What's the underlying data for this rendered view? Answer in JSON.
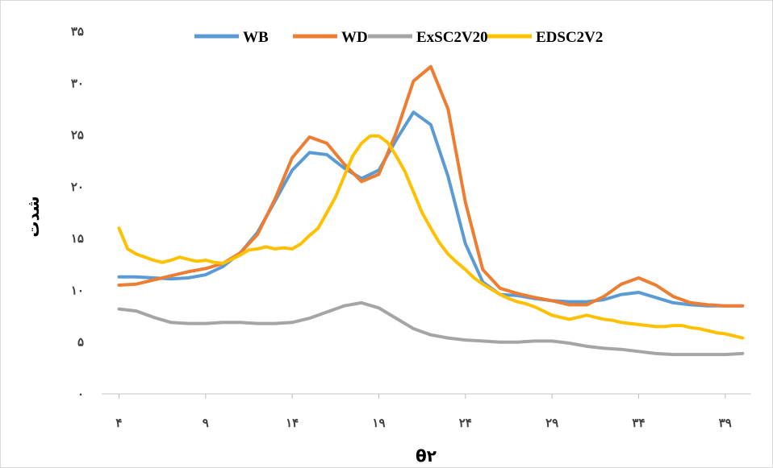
{
  "chart_data": {
    "type": "line",
    "title": "",
    "xlabel": "θ۲",
    "ylabel": "شدت",
    "xlim": [
      3,
      40.5
    ],
    "ylim": [
      0,
      35
    ],
    "x_ticks": [
      {
        "value": 4,
        "label": "۴"
      },
      {
        "value": 9,
        "label": "۹"
      },
      {
        "value": 14,
        "label": "۱۴"
      },
      {
        "value": 19,
        "label": "۱۹"
      },
      {
        "value": 24,
        "label": "۲۴"
      },
      {
        "value": 29,
        "label": "۲۹"
      },
      {
        "value": 34,
        "label": "۳۴"
      },
      {
        "value": 39,
        "label": "۳۹"
      }
    ],
    "y_ticks": [
      {
        "value": 0,
        "label": "۰"
      },
      {
        "value": 5,
        "label": "۵"
      },
      {
        "value": 10,
        "label": "۱۰"
      },
      {
        "value": 15,
        "label": "۱۵"
      },
      {
        "value": 20,
        "label": "۲۰"
      },
      {
        "value": 25,
        "label": "۲۵"
      },
      {
        "value": 30,
        "label": "۳۰"
      },
      {
        "value": 35,
        "label": "۳۵"
      }
    ],
    "grid": false,
    "legend_position": "top",
    "series": [
      {
        "name": "WB",
        "color": "#5b9bd5",
        "points": [
          [
            4,
            11.3
          ],
          [
            5,
            11.3
          ],
          [
            6,
            11.2
          ],
          [
            7,
            11.1
          ],
          [
            8,
            11.2
          ],
          [
            9,
            11.5
          ],
          [
            10,
            12.3
          ],
          [
            11,
            13.6
          ],
          [
            12,
            15.6
          ],
          [
            13,
            18.6
          ],
          [
            14,
            21.6
          ],
          [
            15,
            23.3
          ],
          [
            16,
            23.1
          ],
          [
            17,
            21.8
          ],
          [
            18,
            20.8
          ],
          [
            19,
            21.6
          ],
          [
            20,
            24.5
          ],
          [
            21,
            27.2
          ],
          [
            22,
            26.0
          ],
          [
            23,
            21.0
          ],
          [
            24,
            14.5
          ],
          [
            25,
            10.8
          ],
          [
            26,
            9.6
          ],
          [
            27,
            9.5
          ],
          [
            28,
            9.2
          ],
          [
            29,
            9.0
          ],
          [
            30,
            8.9
          ],
          [
            31,
            8.9
          ],
          [
            32,
            9.1
          ],
          [
            33,
            9.6
          ],
          [
            34,
            9.8
          ],
          [
            35,
            9.3
          ],
          [
            36,
            8.8
          ],
          [
            37,
            8.6
          ],
          [
            38,
            8.5
          ],
          [
            39,
            8.5
          ],
          [
            40,
            8.5
          ]
        ]
      },
      {
        "name": "WD",
        "color": "#ed7d31",
        "points": [
          [
            4,
            10.5
          ],
          [
            5,
            10.6
          ],
          [
            6,
            11.0
          ],
          [
            7,
            11.4
          ],
          [
            8,
            11.8
          ],
          [
            9,
            12.1
          ],
          [
            10,
            12.6
          ],
          [
            11,
            13.6
          ],
          [
            12,
            15.4
          ],
          [
            13,
            18.8
          ],
          [
            14,
            22.8
          ],
          [
            15,
            24.8
          ],
          [
            16,
            24.2
          ],
          [
            17,
            22.2
          ],
          [
            18,
            20.5
          ],
          [
            19,
            21.2
          ],
          [
            20,
            25.2
          ],
          [
            21,
            30.2
          ],
          [
            22,
            31.6
          ],
          [
            23,
            27.5
          ],
          [
            24,
            18.5
          ],
          [
            25,
            12.0
          ],
          [
            26,
            10.2
          ],
          [
            27,
            9.7
          ],
          [
            28,
            9.3
          ],
          [
            29,
            9.0
          ],
          [
            30,
            8.6
          ],
          [
            31,
            8.6
          ],
          [
            32,
            9.4
          ],
          [
            33,
            10.6
          ],
          [
            34,
            11.2
          ],
          [
            35,
            10.5
          ],
          [
            36,
            9.4
          ],
          [
            37,
            8.8
          ],
          [
            38,
            8.6
          ],
          [
            39,
            8.5
          ],
          [
            40,
            8.5
          ]
        ]
      },
      {
        "name": "ExSC2V20",
        "color": "#a5a5a5",
        "points": [
          [
            4,
            8.2
          ],
          [
            5,
            8.0
          ],
          [
            6,
            7.4
          ],
          [
            7,
            6.9
          ],
          [
            8,
            6.8
          ],
          [
            9,
            6.8
          ],
          [
            10,
            6.9
          ],
          [
            11,
            6.9
          ],
          [
            12,
            6.8
          ],
          [
            13,
            6.8
          ],
          [
            14,
            6.9
          ],
          [
            15,
            7.3
          ],
          [
            16,
            7.9
          ],
          [
            17,
            8.5
          ],
          [
            18,
            8.8
          ],
          [
            19,
            8.3
          ],
          [
            20,
            7.3
          ],
          [
            21,
            6.3
          ],
          [
            22,
            5.7
          ],
          [
            23,
            5.4
          ],
          [
            24,
            5.2
          ],
          [
            25,
            5.1
          ],
          [
            26,
            5.0
          ],
          [
            27,
            5.0
          ],
          [
            28,
            5.1
          ],
          [
            29,
            5.1
          ],
          [
            30,
            4.9
          ],
          [
            31,
            4.6
          ],
          [
            32,
            4.4
          ],
          [
            33,
            4.3
          ],
          [
            34,
            4.1
          ],
          [
            35,
            3.9
          ],
          [
            36,
            3.8
          ],
          [
            37,
            3.8
          ],
          [
            38,
            3.8
          ],
          [
            39,
            3.8
          ],
          [
            40,
            3.9
          ]
        ]
      },
      {
        "name": "EDSC2V2",
        "color": "#ffc000",
        "points": [
          [
            4,
            16.0
          ],
          [
            4.2,
            15.2
          ],
          [
            4.5,
            14.0
          ],
          [
            5,
            13.5
          ],
          [
            5.5,
            13.2
          ],
          [
            6,
            12.9
          ],
          [
            6.5,
            12.7
          ],
          [
            7,
            12.9
          ],
          [
            7.5,
            13.2
          ],
          [
            8,
            13.0
          ],
          [
            8.5,
            12.8
          ],
          [
            9,
            12.9
          ],
          [
            9.5,
            12.7
          ],
          [
            10,
            12.6
          ],
          [
            10.5,
            13.0
          ],
          [
            11,
            13.4
          ],
          [
            11.5,
            13.9
          ],
          [
            12,
            14.0
          ],
          [
            12.5,
            14.2
          ],
          [
            13,
            14.0
          ],
          [
            13.5,
            14.1
          ],
          [
            14,
            14.0
          ],
          [
            14.5,
            14.5
          ],
          [
            15,
            15.3
          ],
          [
            15.5,
            16.0
          ],
          [
            16,
            17.5
          ],
          [
            16.5,
            19.0
          ],
          [
            17,
            21.0
          ],
          [
            17.5,
            23.0
          ],
          [
            18,
            24.2
          ],
          [
            18.5,
            24.9
          ],
          [
            19,
            24.9
          ],
          [
            19.5,
            24.3
          ],
          [
            20,
            23.0
          ],
          [
            20.5,
            21.5
          ],
          [
            21,
            19.5
          ],
          [
            21.5,
            17.5
          ],
          [
            22,
            16.0
          ],
          [
            22.5,
            14.6
          ],
          [
            23,
            13.5
          ],
          [
            23.5,
            12.7
          ],
          [
            24,
            12.0
          ],
          [
            24.5,
            11.2
          ],
          [
            25,
            10.6
          ],
          [
            25.5,
            10.1
          ],
          [
            26,
            9.6
          ],
          [
            26.5,
            9.2
          ],
          [
            27,
            8.9
          ],
          [
            27.5,
            8.7
          ],
          [
            28,
            8.4
          ],
          [
            28.5,
            8.0
          ],
          [
            29,
            7.6
          ],
          [
            29.5,
            7.4
          ],
          [
            30,
            7.2
          ],
          [
            30.5,
            7.4
          ],
          [
            31,
            7.6
          ],
          [
            31.5,
            7.4
          ],
          [
            32,
            7.2
          ],
          [
            32.5,
            7.1
          ],
          [
            33,
            6.9
          ],
          [
            33.5,
            6.8
          ],
          [
            34,
            6.7
          ],
          [
            34.5,
            6.6
          ],
          [
            35,
            6.5
          ],
          [
            35.5,
            6.5
          ],
          [
            36,
            6.6
          ],
          [
            36.5,
            6.6
          ],
          [
            37,
            6.4
          ],
          [
            37.5,
            6.3
          ],
          [
            38,
            6.1
          ],
          [
            38.5,
            5.9
          ],
          [
            39,
            5.8
          ],
          [
            39.5,
            5.6
          ],
          [
            40,
            5.4
          ]
        ]
      }
    ]
  }
}
